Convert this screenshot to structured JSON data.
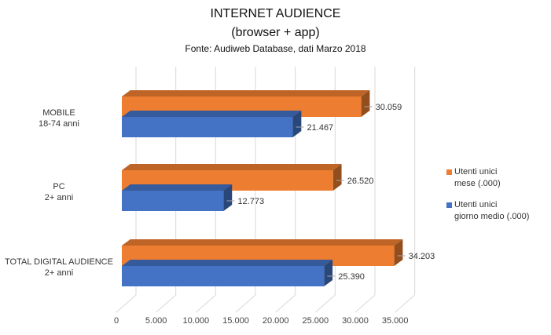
{
  "chart_data": {
    "type": "bar",
    "orientation": "horizontal",
    "style": "3d-clustered",
    "title": "INTERNET AUDIENCE",
    "subtitle": "(browser + app)",
    "source": "Fonte: Audiweb Database, dati Marzo 2018",
    "categories": [
      {
        "line1": "MOBILE",
        "line2": "18-74 anni"
      },
      {
        "line1": "PC",
        "line2": "2+ anni"
      },
      {
        "line1": "TOTAL DIGITAL AUDIENCE",
        "line2": "2+ anni"
      }
    ],
    "series": [
      {
        "name_line1": "Utenti unici",
        "name_line2": "mese (.000)",
        "color": "#ED7D31",
        "values": [
          30059,
          26520,
          34203
        ],
        "labels": [
          "30.059",
          "26.520",
          "34.203"
        ]
      },
      {
        "name_line1": "Utenti unici",
        "name_line2": "giorno medio (.000)",
        "color": "#4472C4",
        "values": [
          21467,
          12773,
          25390
        ],
        "labels": [
          "21.467",
          "12.773",
          "25.390"
        ]
      }
    ],
    "xlim": [
      0,
      35000
    ],
    "xticks": [
      0,
      5000,
      10000,
      15000,
      20000,
      25000,
      30000,
      35000
    ],
    "xtick_labels": [
      "0",
      "5.000",
      "10.000",
      "15.000",
      "20.000",
      "25.000",
      "30.000",
      "35.000"
    ],
    "grid": true,
    "legend_position": "right"
  }
}
